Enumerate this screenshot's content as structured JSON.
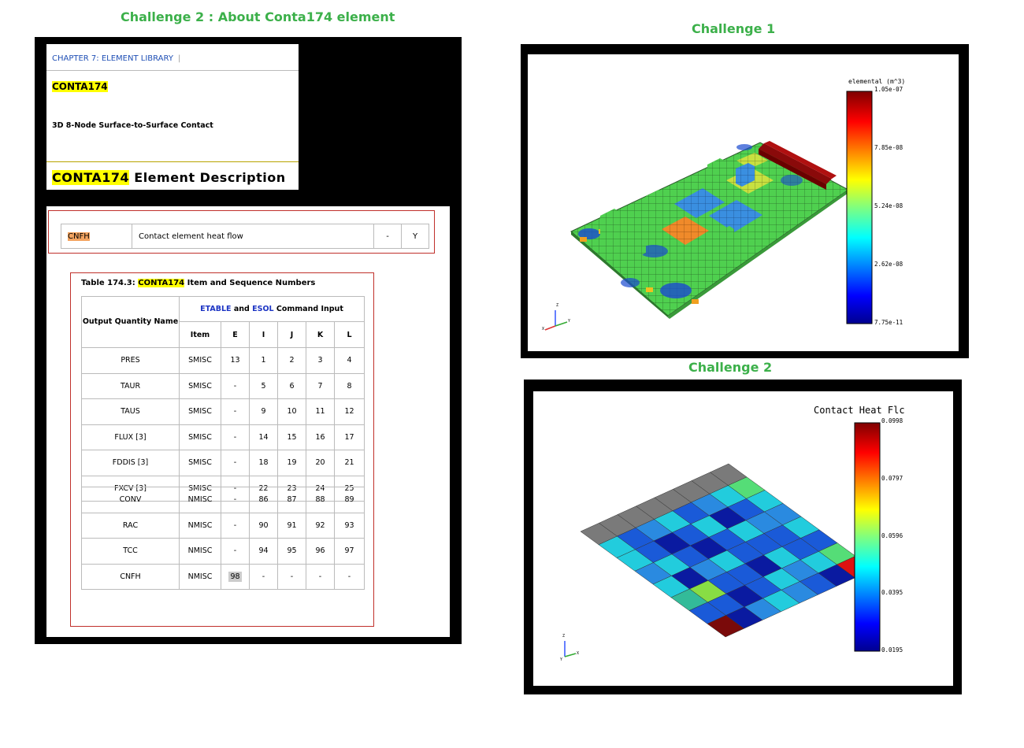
{
  "headings": {
    "challenge2_doc": "Challenge 2 : About Conta174 element",
    "challenge1": "Challenge 1",
    "challenge2": "Challenge 2"
  },
  "doc_header": {
    "chapter": "CHAPTER 7: ELEMENT LIBRARY",
    "separator": "|",
    "element_name": "CONTA174",
    "element_subtitle": "3D 8-Node Surface-to-Surface Contact",
    "description_highlight": "CONTA174",
    "description_rest": " Element Description"
  },
  "cnfh_row": {
    "name": "CNFH",
    "definition": "Contact element heat flow",
    "col_o": "-",
    "col_r": "Y"
  },
  "table": {
    "caption_prefix": "Table 174.3: ",
    "caption_highlight": "CONTA174",
    "caption_suffix": " Item and Sequence Numbers",
    "header_quantity": "Output Quantity Name",
    "header_etable": "ETABLE",
    "header_and": " and ",
    "header_esol": "ESOL",
    "header_cmd": " Command Input",
    "columns": [
      "Item",
      "E",
      "I",
      "J",
      "K",
      "L"
    ],
    "rows_top": [
      [
        "PRES",
        "SMISC",
        "13",
        "1",
        "2",
        "3",
        "4"
      ],
      [
        "TAUR",
        "SMISC",
        "-",
        "5",
        "6",
        "7",
        "8"
      ],
      [
        "TAUS",
        "SMISC",
        "-",
        "9",
        "10",
        "11",
        "12"
      ],
      [
        "FLUX [3]",
        "SMISC",
        "-",
        "14",
        "15",
        "16",
        "17"
      ],
      [
        "FDDIS [3]",
        "SMISC",
        "-",
        "18",
        "19",
        "20",
        "21"
      ],
      [
        "FXCV [3]",
        "SMISC",
        "-",
        "22",
        "23",
        "24",
        "25"
      ]
    ],
    "rows_bottom": [
      [
        "CONV",
        "NMISC",
        "-",
        "86",
        "87",
        "88",
        "89"
      ],
      [
        "RAC",
        "NMISC",
        "-",
        "90",
        "91",
        "92",
        "93"
      ],
      [
        "TCC",
        "NMISC",
        "-",
        "94",
        "95",
        "96",
        "97"
      ],
      [
        "CNFH",
        "NMISC",
        "98",
        "-",
        "-",
        "-",
        "-"
      ]
    ]
  },
  "plot1": {
    "legend_title": "elemental (m^3)",
    "ticks": [
      "1.05e-07",
      "7.85e-08",
      "5.24e-08",
      "2.62e-08",
      "7.75e-11"
    ],
    "axis_labels": [
      "Z",
      "Y",
      "X"
    ]
  },
  "plot2": {
    "legend_title": "Contact Heat Flc",
    "ticks": [
      "0.0998",
      "0.0797",
      "0.0596",
      "0.0395",
      "0.0195"
    ],
    "axis_labels": [
      "Z",
      "X",
      "Y"
    ]
  },
  "colors": {
    "heading_green": "#3cb04a",
    "highlight_yellow": "#ffff00",
    "highlight_orange": "#f4a460",
    "box_red": "#c0302b",
    "link_blue": "#1f4fb5"
  }
}
